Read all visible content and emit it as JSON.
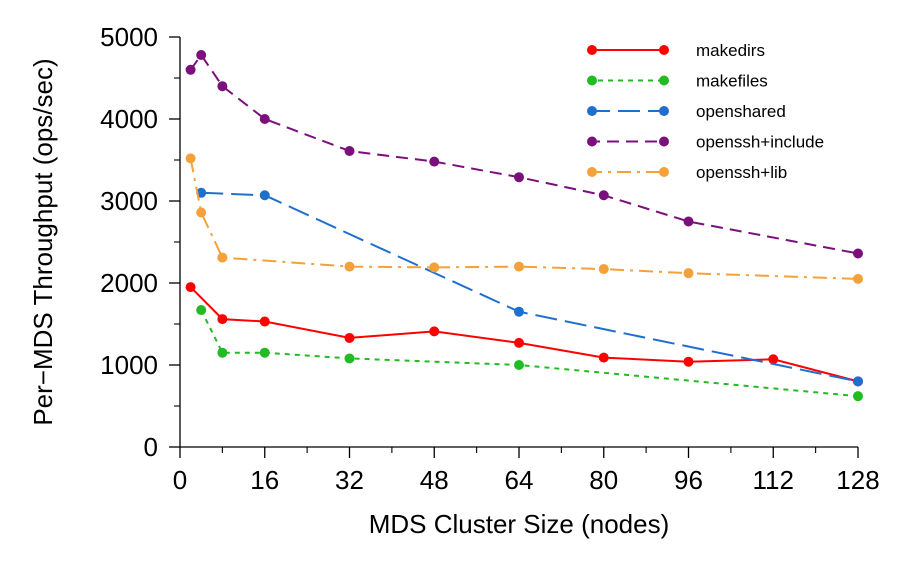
{
  "chart_data": {
    "type": "line",
    "xlabel": "MDS Cluster Size (nodes)",
    "ylabel": "Per−MDS Throughput (ops/sec)",
    "xlim": [
      0,
      128
    ],
    "ylim": [
      0,
      5000
    ],
    "xticks": [
      0,
      16,
      32,
      48,
      64,
      80,
      96,
      112,
      128
    ],
    "xtick_labels": [
      "0",
      "16",
      "32",
      "48",
      "64",
      "80",
      "96",
      "112",
      "128"
    ],
    "yticks": [
      0,
      1000,
      2000,
      3000,
      4000,
      5000
    ],
    "ytick_labels": [
      "0",
      "1000",
      "2000",
      "3000",
      "4000",
      "5000"
    ],
    "grid": false,
    "legend_position": "top-right",
    "series": [
      {
        "name": "makedirs",
        "color": "#ff0000",
        "dash": "solid",
        "points": [
          [
            2,
            1950
          ],
          [
            8,
            1560
          ],
          [
            16,
            1530
          ],
          [
            32,
            1330
          ],
          [
            48,
            1410
          ],
          [
            64,
            1270
          ],
          [
            80,
            1090
          ],
          [
            96,
            1040
          ],
          [
            112,
            1070
          ],
          [
            128,
            800
          ]
        ]
      },
      {
        "name": "makefiles",
        "color": "#22bb22",
        "dash": "short",
        "points": [
          [
            4,
            1670
          ],
          [
            8,
            1150
          ],
          [
            16,
            1150
          ],
          [
            32,
            1080
          ],
          [
            64,
            1000
          ],
          [
            128,
            620
          ]
        ]
      },
      {
        "name": "openshared",
        "color": "#1f6fce",
        "dash": "long",
        "points": [
          [
            4,
            3100
          ],
          [
            16,
            3070
          ],
          [
            64,
            1650
          ],
          [
            128,
            800
          ]
        ]
      },
      {
        "name": "openssh+include",
        "color": "#7b0f7b",
        "dash": "medium",
        "points": [
          [
            2,
            4600
          ],
          [
            4,
            4780
          ],
          [
            8,
            4400
          ],
          [
            16,
            4000
          ],
          [
            32,
            3610
          ],
          [
            48,
            3480
          ],
          [
            64,
            3290
          ],
          [
            80,
            3070
          ],
          [
            96,
            2750
          ],
          [
            128,
            2360
          ]
        ]
      },
      {
        "name": "openssh+lib",
        "color": "#f4a13a",
        "dash": "dashdot",
        "points": [
          [
            2,
            3520
          ],
          [
            4,
            2860
          ],
          [
            8,
            2310
          ],
          [
            32,
            2200
          ],
          [
            48,
            2190
          ],
          [
            64,
            2200
          ],
          [
            80,
            2170
          ],
          [
            96,
            2120
          ],
          [
            128,
            2050
          ]
        ]
      }
    ]
  }
}
